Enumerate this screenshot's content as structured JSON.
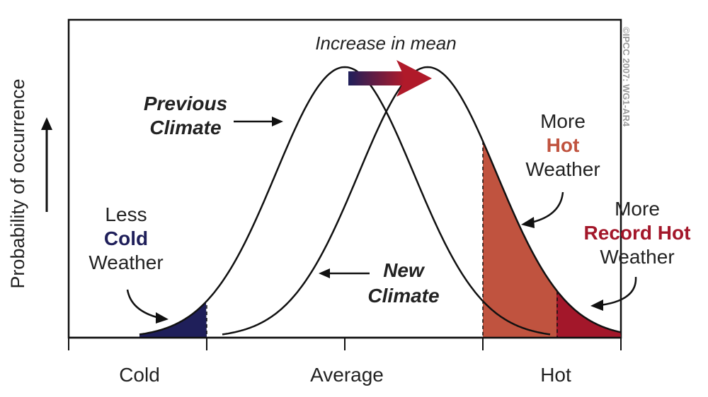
{
  "title": "Increase in mean",
  "y_axis_label": "Probability of occurrence",
  "x_ticks": [
    "Cold",
    "Average",
    "Hot"
  ],
  "copyright": "©IPCC  2007: WG1-AR4",
  "labels": {
    "previous": [
      "Previous",
      "Climate"
    ],
    "new": [
      "New",
      "Climate"
    ],
    "less_cold": [
      "Less",
      "Cold",
      "Weather"
    ],
    "more_hot": [
      "More",
      "Hot",
      "Weather"
    ],
    "record_hot": [
      "More",
      "Record Hot",
      "Weather"
    ]
  },
  "colors": {
    "cold": "#1f1f5a",
    "hot": "#c0533f",
    "record": "#a3172a",
    "arrow_start": "#1f1f5a",
    "arrow_end": "#b01a2a"
  },
  "distributions": {
    "previous_mean": 0,
    "new_mean": 0.6,
    "sigma": 0.5,
    "x_range": [
      -2,
      2
    ]
  }
}
